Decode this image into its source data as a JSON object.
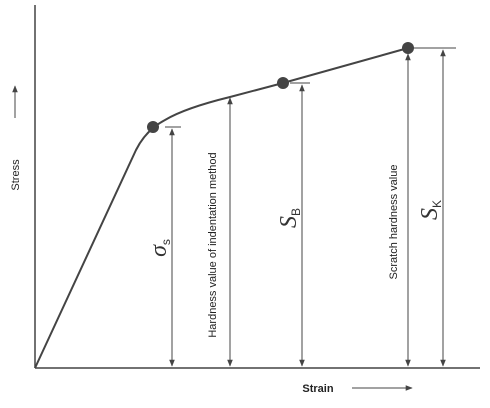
{
  "axes": {
    "y_label": "Stress",
    "x_label": "Strain"
  },
  "annotations": [
    {
      "symbol": "σ",
      "subscript": "s"
    },
    {
      "text": "Hardness value of indentation method"
    },
    {
      "symbol": "S",
      "subscript": "B"
    },
    {
      "text": "Scratch hardness value"
    },
    {
      "symbol": "S",
      "subscript": "K"
    }
  ]
}
